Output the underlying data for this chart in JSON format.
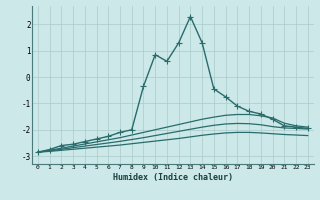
{
  "xlabel": "Humidex (Indice chaleur)",
  "bg_color": "#cce8e8",
  "grid_color": "#aacccc",
  "line_color": "#2a6b6b",
  "xlim": [
    -0.5,
    23.5
  ],
  "ylim": [
    -3.3,
    2.7
  ],
  "xticks": [
    0,
    1,
    2,
    3,
    4,
    5,
    6,
    7,
    8,
    9,
    10,
    11,
    12,
    13,
    14,
    15,
    16,
    17,
    18,
    19,
    20,
    21,
    22,
    23
  ],
  "yticks": [
    -3,
    -2,
    -1,
    0,
    1,
    2
  ],
  "main_x": [
    0,
    1,
    2,
    3,
    4,
    5,
    6,
    7,
    8,
    9,
    10,
    11,
    12,
    13,
    14,
    15,
    16,
    17,
    18,
    19,
    20,
    21,
    22,
    23
  ],
  "main_y": [
    -2.85,
    -2.75,
    -2.6,
    -2.55,
    -2.45,
    -2.35,
    -2.25,
    -2.1,
    -2.0,
    -0.35,
    0.85,
    0.6,
    1.3,
    2.3,
    1.3,
    -0.45,
    -0.75,
    -1.1,
    -1.3,
    -1.4,
    -1.6,
    -1.85,
    -1.9,
    -1.95
  ],
  "smooth1_x": [
    0,
    1,
    2,
    3,
    4,
    5,
    6,
    7,
    8,
    9,
    10,
    11,
    12,
    13,
    14,
    15,
    16,
    17,
    18,
    19,
    20,
    21,
    22,
    23
  ],
  "smooth1_y": [
    -2.85,
    -2.78,
    -2.7,
    -2.62,
    -2.54,
    -2.46,
    -2.38,
    -2.3,
    -2.2,
    -2.1,
    -2.0,
    -1.9,
    -1.8,
    -1.7,
    -1.6,
    -1.52,
    -1.45,
    -1.42,
    -1.42,
    -1.47,
    -1.55,
    -1.75,
    -1.85,
    -1.9
  ],
  "smooth2_x": [
    0,
    1,
    2,
    3,
    4,
    5,
    6,
    7,
    8,
    9,
    10,
    11,
    12,
    13,
    14,
    15,
    16,
    17,
    18,
    19,
    20,
    21,
    22,
    23
  ],
  "smooth2_y": [
    -2.85,
    -2.8,
    -2.74,
    -2.68,
    -2.62,
    -2.56,
    -2.5,
    -2.44,
    -2.37,
    -2.3,
    -2.22,
    -2.14,
    -2.06,
    -1.98,
    -1.9,
    -1.83,
    -1.78,
    -1.76,
    -1.77,
    -1.81,
    -1.88,
    -1.93,
    -1.95,
    -1.97
  ],
  "smooth3_x": [
    0,
    1,
    2,
    3,
    4,
    5,
    6,
    7,
    8,
    9,
    10,
    11,
    12,
    13,
    14,
    15,
    16,
    17,
    18,
    19,
    20,
    21,
    22,
    23
  ],
  "smooth3_y": [
    -2.85,
    -2.82,
    -2.78,
    -2.74,
    -2.7,
    -2.66,
    -2.62,
    -2.58,
    -2.53,
    -2.48,
    -2.43,
    -2.38,
    -2.33,
    -2.27,
    -2.21,
    -2.16,
    -2.12,
    -2.1,
    -2.1,
    -2.12,
    -2.15,
    -2.18,
    -2.2,
    -2.22
  ]
}
